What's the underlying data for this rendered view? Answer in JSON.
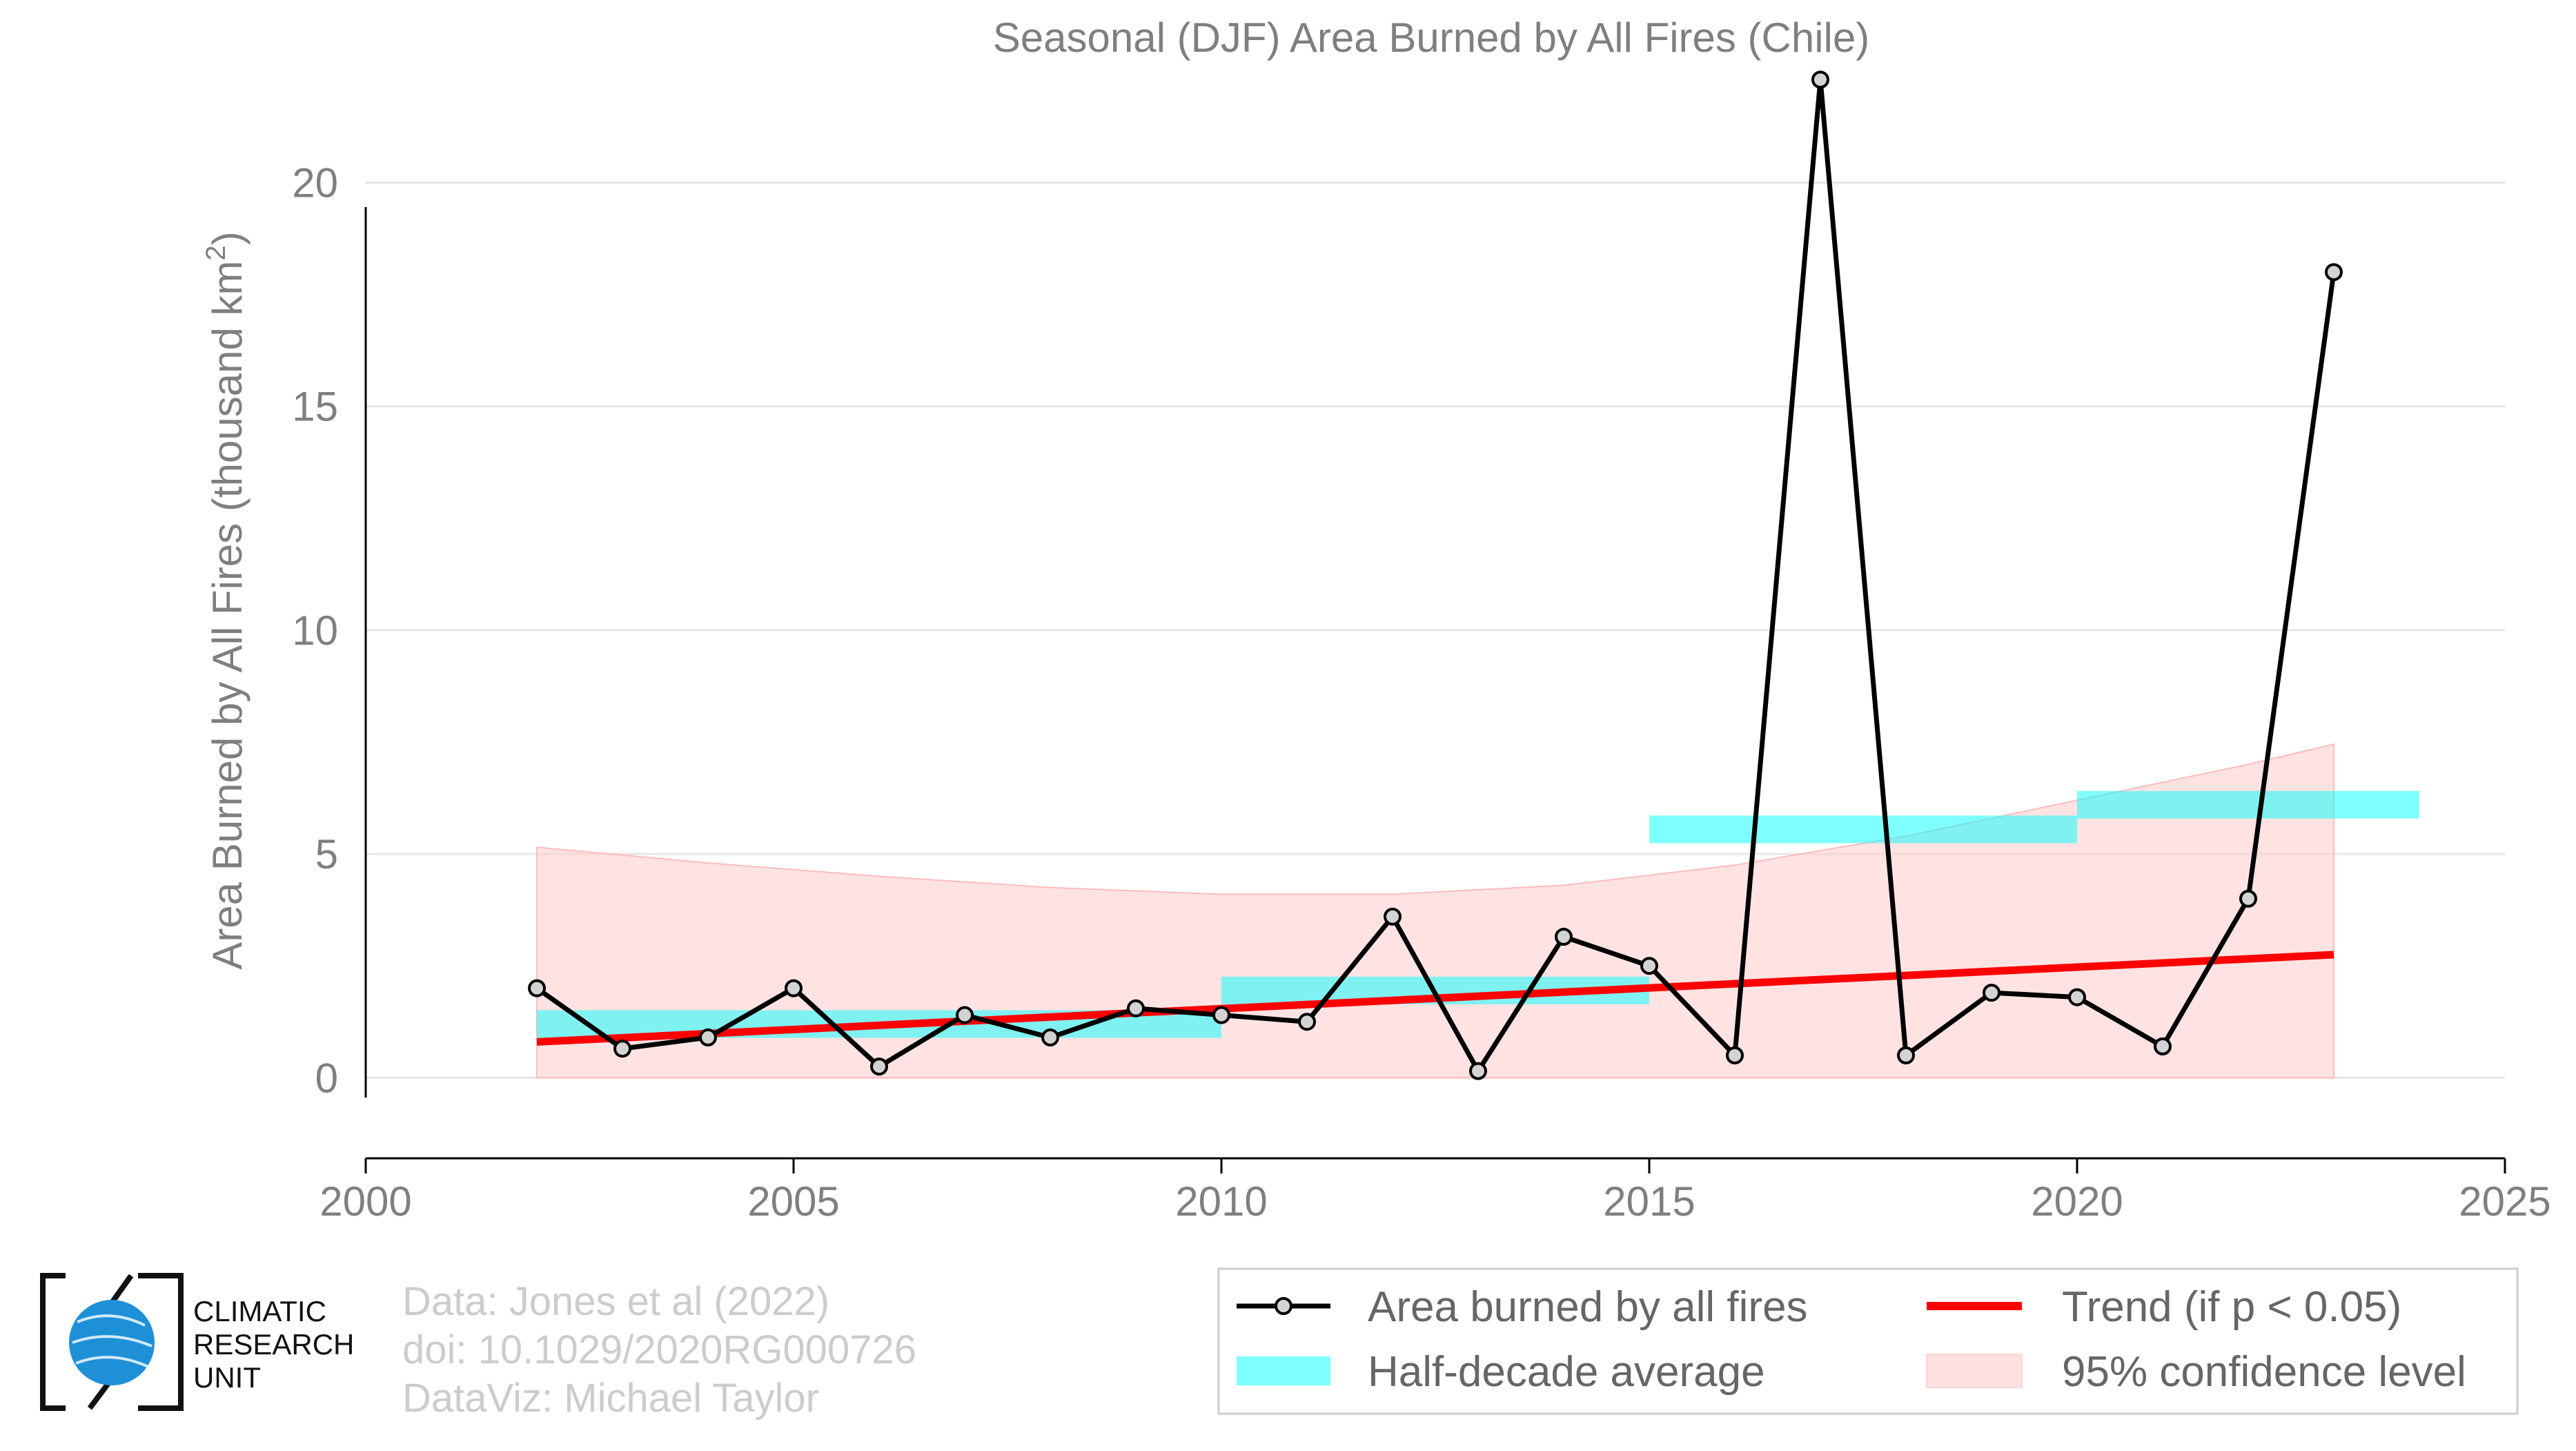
{
  "chart_data": {
    "type": "line",
    "title": "Seasonal (DJF) Area Burned by All Fires (Chile)",
    "ylabel": "Area Burned by All Fires (thousand km",
    "ylabel_sup": "2",
    "ylabel_close": ")",
    "xlabel": "",
    "xlim": [
      2000,
      2025
    ],
    "ylim": [
      -1.8,
      23
    ],
    "xticks": [
      "2000",
      "2005",
      "2010",
      "2015",
      "2020",
      "2025"
    ],
    "yticks": [
      "0",
      "5",
      "10",
      "15",
      "20"
    ],
    "grid": "horizontal",
    "series": [
      {
        "name": "Area burned by all fires",
        "color": "#000000",
        "x": [
          2002,
          2003,
          2004,
          2005,
          2006,
          2007,
          2008,
          2009,
          2010,
          2011,
          2012,
          2013,
          2014,
          2015,
          2016,
          2017,
          2018,
          2019,
          2020,
          2021,
          2022,
          2023
        ],
        "values": [
          2.0,
          0.65,
          0.9,
          2.0,
          0.25,
          1.4,
          0.9,
          1.55,
          1.4,
          1.25,
          3.6,
          0.15,
          3.15,
          2.5,
          0.5,
          22.3,
          0.5,
          1.9,
          1.8,
          0.7,
          4.0,
          18.0
        ]
      }
    ],
    "half_decade_average": {
      "name": "Half-decade average",
      "color": "#00ffff",
      "segments": [
        {
          "x0": 2002,
          "x1": 2010,
          "value": 1.2
        },
        {
          "x0": 2010,
          "x1": 2015,
          "value": 1.95
        },
        {
          "x0": 2015,
          "x1": 2020,
          "value": 5.55
        },
        {
          "x0": 2020,
          "x1": 2024,
          "value": 6.1
        }
      ]
    },
    "trend": {
      "name": "Trend (if p < 0.05)",
      "color": "#ff0000",
      "x": [
        2002,
        2023
      ],
      "values": [
        0.8,
        2.75
      ]
    },
    "confidence": {
      "name": "95% confidence level",
      "color": "#ffcccc",
      "x": [
        2002,
        2004,
        2006,
        2008,
        2010,
        2012,
        2014,
        2016,
        2018,
        2020,
        2022,
        2023
      ],
      "upper": [
        5.15,
        4.8,
        4.5,
        4.25,
        4.1,
        4.1,
        4.3,
        4.75,
        5.4,
        6.2,
        7.0,
        7.45
      ],
      "lower": [
        0,
        0,
        0,
        0,
        0,
        0,
        0,
        0,
        0,
        0,
        0,
        0
      ]
    },
    "legend": {
      "placement": "bottom-right",
      "items": [
        "Area burned by all fires",
        "Trend (if p < 0.05)",
        "Half-decade average",
        "95% confidence level"
      ]
    }
  },
  "credits": {
    "line1": "Data: Jones et al (2022)",
    "line2": "doi: 10.1029/2020RG000726",
    "line3": "DataViz: Michael Taylor"
  },
  "logo": {
    "line1": "CLIMATIC",
    "line2": "RESEARCH",
    "line3": "UNIT"
  }
}
